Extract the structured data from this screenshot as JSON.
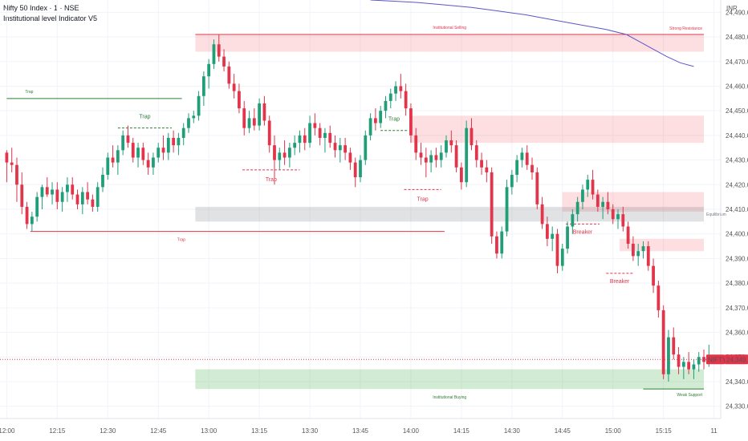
{
  "header": {
    "symbol_title": "Nifty 50 Index · 1 · NSE",
    "indicator_title": "Institutional level Indicator V5",
    "currency": "INR"
  },
  "colors": {
    "up": "#1f9e78",
    "down": "#e2344a",
    "green": "#2e7d32",
    "red": "#e2344a",
    "ma": "#5b56c6"
  },
  "price_tag": {
    "symbol": "NIFTY",
    "value": "24,349.20"
  },
  "chart_data": {
    "type": "candlestick",
    "title": "Nifty 50 Index · 1 · NSE",
    "ylim": [
      24325,
      24495
    ],
    "y_ticks": [
      "24,490.00",
      "24,480.00",
      "24,470.00",
      "24,460.00",
      "24,450.00",
      "24,440.00",
      "24,430.00",
      "24,420.00",
      "24,410.00",
      "24,400.00",
      "24,390.00",
      "24,380.00",
      "24,370.00",
      "24,360.00",
      "24,350.00",
      "24,340.00",
      "24,330.00"
    ],
    "y_tick_values": [
      24490,
      24480,
      24470,
      24460,
      24450,
      24440,
      24430,
      24420,
      24410,
      24400,
      24390,
      24380,
      24370,
      24360,
      24350,
      24340,
      24330
    ],
    "x_ticks": [
      "12:00",
      "12:15",
      "12:30",
      "12:45",
      "13:00",
      "13:15",
      "13:30",
      "13:45",
      "14:00",
      "14:15",
      "14:30",
      "14:45",
      "15:00",
      "15:15",
      "11"
    ],
    "x_tick_minutes": [
      0,
      15,
      30,
      45,
      60,
      75,
      90,
      105,
      120,
      135,
      150,
      165,
      180,
      195,
      210
    ],
    "zones": [
      {
        "label": "Institutional Selling",
        "x0": 56,
        "x1": 207,
        "y_low": 24474,
        "y_high": 24481,
        "kind": "supply"
      },
      {
        "label": "",
        "x0": 120,
        "x1": 207,
        "y_low": 24437,
        "y_high": 24448,
        "kind": "supply"
      },
      {
        "label": "",
        "x0": 165,
        "x1": 207,
        "y_low": 24409,
        "y_high": 24417,
        "kind": "supply"
      },
      {
        "label": "",
        "x0": 182,
        "x1": 207,
        "y_low": 24393,
        "y_high": 24398,
        "kind": "supply"
      },
      {
        "label": "Equilibrium",
        "x0": 56,
        "x1": 207,
        "y_low": 24405,
        "y_high": 24411,
        "kind": "equilibrium"
      },
      {
        "label": "Institutional Buying",
        "x0": 56,
        "x1": 207,
        "y_low": 24337,
        "y_high": 24345,
        "kind": "demand"
      }
    ],
    "levels": [
      {
        "label": "Strong Resistance",
        "price": 24481,
        "x0": 56,
        "x1": 207,
        "color": "red"
      },
      {
        "label": "Weak Support",
        "price": 24337,
        "x0": 189,
        "x1": 207,
        "color": "green"
      }
    ],
    "traps": [
      {
        "label": "Trap",
        "price": 24455,
        "x0": 0,
        "x1": 52,
        "style": "solid",
        "color": "green"
      },
      {
        "label": "Trap",
        "price": 24443,
        "x0": 33,
        "x1": 49,
        "style": "dashed",
        "color": "green"
      },
      {
        "label": "Trap",
        "price": 24442,
        "x0": 111,
        "x1": 119,
        "style": "dashed",
        "color": "green"
      },
      {
        "label": "Trap",
        "price": 24401,
        "x0": 7,
        "x1": 130,
        "style": "solid",
        "color": "red"
      },
      {
        "label": "Trap",
        "price": 24426,
        "x0": 70,
        "x1": 87,
        "style": "dashed",
        "color": "red"
      },
      {
        "label": "Trap",
        "price": 24418,
        "x0": 118,
        "x1": 129,
        "style": "dashed",
        "color": "red"
      }
    ],
    "breakers": [
      {
        "label": "Breaker",
        "price": 24404,
        "x0": 166,
        "x1": 176
      },
      {
        "label": "Breaker",
        "price": 24384,
        "x0": 178,
        "x1": 186
      }
    ],
    "moving_average": {
      "x": [
        108,
        115,
        122,
        130,
        138,
        146,
        154,
        162,
        170,
        178,
        184,
        188,
        192,
        196,
        200,
        204
      ],
      "y": [
        24495,
        24494.5,
        24494,
        24493,
        24492,
        24490.5,
        24489,
        24487,
        24485,
        24483,
        24481,
        24478,
        24475,
        24472,
        24469.5,
        24468
      ]
    },
    "candles_ohlc": [
      [
        24433,
        24434,
        24421,
        24429
      ],
      [
        24429,
        24435,
        24425,
        24428
      ],
      [
        24428,
        24431,
        24413,
        24420
      ],
      [
        24420,
        24425,
        24408,
        24411
      ],
      [
        24411,
        24413,
        24402,
        24404
      ],
      [
        24404,
        24409,
        24401,
        24407
      ],
      [
        24407,
        24417,
        24405,
        24415
      ],
      [
        24415,
        24420,
        24410,
        24419
      ],
      [
        24419,
        24423,
        24415,
        24416
      ],
      [
        24416,
        24421,
        24412,
        24418
      ],
      [
        24418,
        24421,
        24410,
        24413
      ],
      [
        24413,
        24419,
        24409,
        24417
      ],
      [
        24417,
        24423,
        24413,
        24420
      ],
      [
        24420,
        24423,
        24414,
        24416
      ],
      [
        24416,
        24418,
        24410,
        24412
      ],
      [
        24412,
        24419,
        24408,
        24417
      ],
      [
        24417,
        24421,
        24412,
        24414
      ],
      [
        24414,
        24416,
        24409,
        24411
      ],
      [
        24411,
        24421,
        24409,
        24419
      ],
      [
        24419,
        24427,
        24417,
        24424
      ],
      [
        24424,
        24433,
        24422,
        24431
      ],
      [
        24431,
        24436,
        24427,
        24429
      ],
      [
        24429,
        24436,
        24424,
        24434
      ],
      [
        24434,
        24442,
        24432,
        24440
      ],
      [
        24440,
        24444,
        24435,
        24437
      ],
      [
        24437,
        24439,
        24429,
        24431
      ],
      [
        24431,
        24437,
        24427,
        24435
      ],
      [
        24435,
        24437,
        24428,
        24430
      ],
      [
        24430,
        24433,
        24424,
        24427
      ],
      [
        24427,
        24433,
        24424,
        24431
      ],
      [
        24431,
        24437,
        24429,
        24435
      ],
      [
        24435,
        24440,
        24430,
        24433
      ],
      [
        24433,
        24441,
        24430,
        24439
      ],
      [
        24439,
        24442,
        24433,
        24436
      ],
      [
        24436,
        24441,
        24432,
        24439
      ],
      [
        24439,
        24445,
        24436,
        24443
      ],
      [
        24443,
        24449,
        24441,
        24447
      ],
      [
        24447,
        24450,
        24445,
        24448
      ],
      [
        24448,
        24458,
        24446,
        24456
      ],
      [
        24456,
        24466,
        24452,
        24464
      ],
      [
        24464,
        24471,
        24459,
        24469
      ],
      [
        24469,
        24479,
        24467,
        24477
      ],
      [
        24477,
        24481,
        24470,
        24472
      ],
      [
        24472,
        24475,
        24466,
        24468
      ],
      [
        24468,
        24470,
        24459,
        24461
      ],
      [
        24461,
        24465,
        24455,
        24458
      ],
      [
        24458,
        24461,
        24449,
        24451
      ],
      [
        24451,
        24454,
        24440,
        24443
      ],
      [
        24443,
        24450,
        24441,
        24447
      ],
      [
        24447,
        24451,
        24442,
        24444
      ],
      [
        24444,
        24455,
        24442,
        24453
      ],
      [
        24453,
        24456,
        24444,
        24446
      ],
      [
        24446,
        24448,
        24433,
        24436
      ],
      [
        24436,
        24440,
        24420,
        24430
      ],
      [
        24430,
        24435,
        24426,
        24433
      ],
      [
        24433,
        24438,
        24428,
        24431
      ],
      [
        24431,
        24437,
        24427,
        24435
      ],
      [
        24435,
        24440,
        24432,
        24437
      ],
      [
        24437,
        24442,
        24433,
        24440
      ],
      [
        24440,
        24443,
        24434,
        24437
      ],
      [
        24437,
        24448,
        24435,
        24445
      ],
      [
        24445,
        24449,
        24440,
        24443
      ],
      [
        24443,
        24445,
        24436,
        24439
      ],
      [
        24439,
        24443,
        24433,
        24441
      ],
      [
        24441,
        24444,
        24435,
        24437
      ],
      [
        24437,
        24440,
        24431,
        24434
      ],
      [
        24434,
        24439,
        24429,
        24436
      ],
      [
        24436,
        24439,
        24430,
        24433
      ],
      [
        24433,
        24435,
        24426,
        24429
      ],
      [
        24429,
        24431,
        24419,
        24423
      ],
      [
        24423,
        24432,
        24421,
        24430
      ],
      [
        24430,
        24442,
        24428,
        24440
      ],
      [
        24440,
        24449,
        24438,
        24447
      ],
      [
        24447,
        24451,
        24442,
        24445
      ],
      [
        24445,
        24452,
        24443,
        24450
      ],
      [
        24450,
        24456,
        24447,
        24454
      ],
      [
        24454,
        24459,
        24451,
        24457
      ],
      [
        24457,
        24462,
        24454,
        24460
      ],
      [
        24460,
        24465,
        24455,
        24458
      ],
      [
        24458,
        24461,
        24448,
        24451
      ],
      [
        24451,
        24453,
        24437,
        24440
      ],
      [
        24440,
        24443,
        24430,
        24433
      ],
      [
        24433,
        24437,
        24428,
        24431
      ],
      [
        24431,
        24435,
        24423,
        24429
      ],
      [
        24429,
        24434,
        24425,
        24432
      ],
      [
        24432,
        24435,
        24427,
        24430
      ],
      [
        24430,
        24436,
        24427,
        24433
      ],
      [
        24433,
        24440,
        24431,
        24438
      ],
      [
        24438,
        24442,
        24433,
        24436
      ],
      [
        24436,
        24438,
        24425,
        24427
      ],
      [
        24427,
        24429,
        24418,
        24421
      ],
      [
        24421,
        24446,
        24419,
        24443
      ],
      [
        24443,
        24447,
        24434,
        24436
      ],
      [
        24436,
        24438,
        24427,
        24430
      ],
      [
        24430,
        24433,
        24424,
        24427
      ],
      [
        24427,
        24430,
        24421,
        24425
      ],
      [
        24425,
        24427,
        24396,
        24399
      ],
      [
        24399,
        24401,
        24390,
        24392
      ],
      [
        24392,
        24403,
        24390,
        24401
      ],
      [
        24401,
        24422,
        24399,
        24419
      ],
      [
        24419,
        24426,
        24416,
        24424
      ],
      [
        24424,
        24432,
        24421,
        24430
      ],
      [
        24430,
        24435,
        24427,
        24433
      ],
      [
        24433,
        24436,
        24426,
        24428
      ],
      [
        24428,
        24431,
        24422,
        24425
      ],
      [
        24425,
        24427,
        24410,
        24412
      ],
      [
        24412,
        24415,
        24402,
        24404
      ],
      [
        24404,
        24407,
        24395,
        24398
      ],
      [
        24398,
        24403,
        24393,
        24400
      ],
      [
        24400,
        24402,
        24384,
        24387
      ],
      [
        24387,
        24396,
        24385,
        24394
      ],
      [
        24394,
        24405,
        24392,
        24403
      ],
      [
        24403,
        24410,
        24400,
        24408
      ],
      [
        24408,
        24415,
        24405,
        24413
      ],
      [
        24413,
        24420,
        24410,
        24418
      ],
      [
        24418,
        24424,
        24415,
        24422
      ],
      [
        24422,
        24426,
        24414,
        24416
      ],
      [
        24416,
        24418,
        24409,
        24411
      ],
      [
        24411,
        24415,
        24406,
        24413
      ],
      [
        24413,
        24417,
        24408,
        24410
      ],
      [
        24410,
        24412,
        24404,
        24406
      ],
      [
        24406,
        24410,
        24402,
        24408
      ],
      [
        24408,
        24411,
        24401,
        24403
      ],
      [
        24403,
        24405,
        24394,
        24396
      ],
      [
        24396,
        24399,
        24389,
        24391
      ],
      [
        24391,
        24396,
        24387,
        24393
      ],
      [
        24393,
        24397,
        24390,
        24395
      ],
      [
        24395,
        24397,
        24385,
        24387
      ],
      [
        24387,
        24390,
        24376,
        24379
      ],
      [
        24379,
        24381,
        24366,
        24369
      ],
      [
        24369,
        24371,
        24341,
        24343
      ],
      [
        24343,
        24361,
        24340,
        24358
      ],
      [
        24358,
        24362,
        24349,
        24351
      ],
      [
        24351,
        24354,
        24343,
        24346
      ],
      [
        24346,
        24350,
        24341,
        24348
      ],
      [
        24348,
        24352,
        24343,
        24345
      ],
      [
        24345,
        24349,
        24341,
        24347
      ],
      [
        24347,
        24352,
        24344,
        24350
      ],
      [
        24350,
        24353,
        24345,
        24348
      ],
      [
        24348,
        24355,
        24346,
        24349
      ]
    ]
  }
}
